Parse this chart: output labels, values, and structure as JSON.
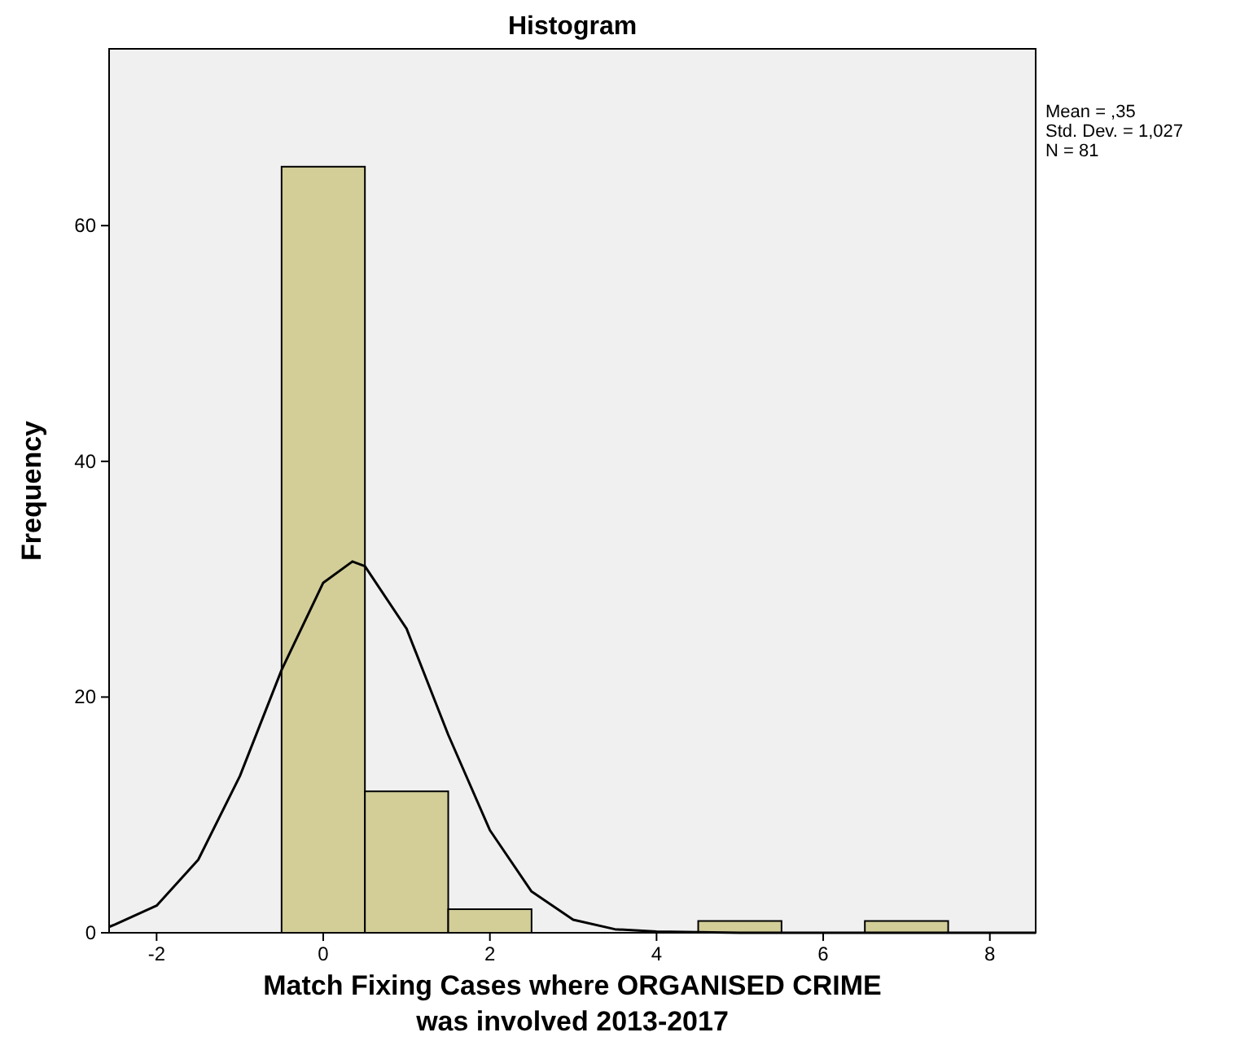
{
  "chart_data": {
    "type": "histogram",
    "title": "Histogram",
    "xlabel": "Match Fixing Cases where ORGANISED CRIME was involved 2013-2017",
    "ylabel": "Frequency",
    "bins": [
      -0.5,
      0.5,
      1.5,
      2.5,
      3.5,
      4.5,
      5.5,
      6.5,
      7.5
    ],
    "values": [
      65,
      12,
      2,
      0,
      0,
      1,
      0,
      1
    ],
    "color": "#d3ce98",
    "series": [
      {
        "type": "line",
        "color": "#000000",
        "x": [
          -2.57,
          -2.5,
          -2,
          -1.5,
          -1,
          -0.5,
          0,
          0.35,
          0.5,
          1,
          1.5,
          2,
          2.5,
          3,
          3.5,
          4,
          5,
          6,
          7,
          8,
          8.55
        ],
        "values": [
          0.5,
          0.7,
          2.3,
          6.2,
          13.3,
          22.3,
          29.7,
          31.5,
          31.1,
          25.8,
          16.8,
          8.7,
          3.5,
          1.1,
          0.3,
          0.1,
          0,
          0,
          0,
          0,
          0
        ]
      }
    ],
    "xlim": [
      -2.57,
      8.55
    ],
    "xticks": [
      -2,
      0,
      2,
      4,
      6,
      8
    ],
    "ylim": [
      0,
      75
    ],
    "yticks": [
      0,
      20,
      40,
      60
    ],
    "grid": false,
    "marker": "none",
    "annotations": [
      "Mean = ,35",
      "Std. Dev. = 1,027",
      "N = 81"
    ]
  }
}
